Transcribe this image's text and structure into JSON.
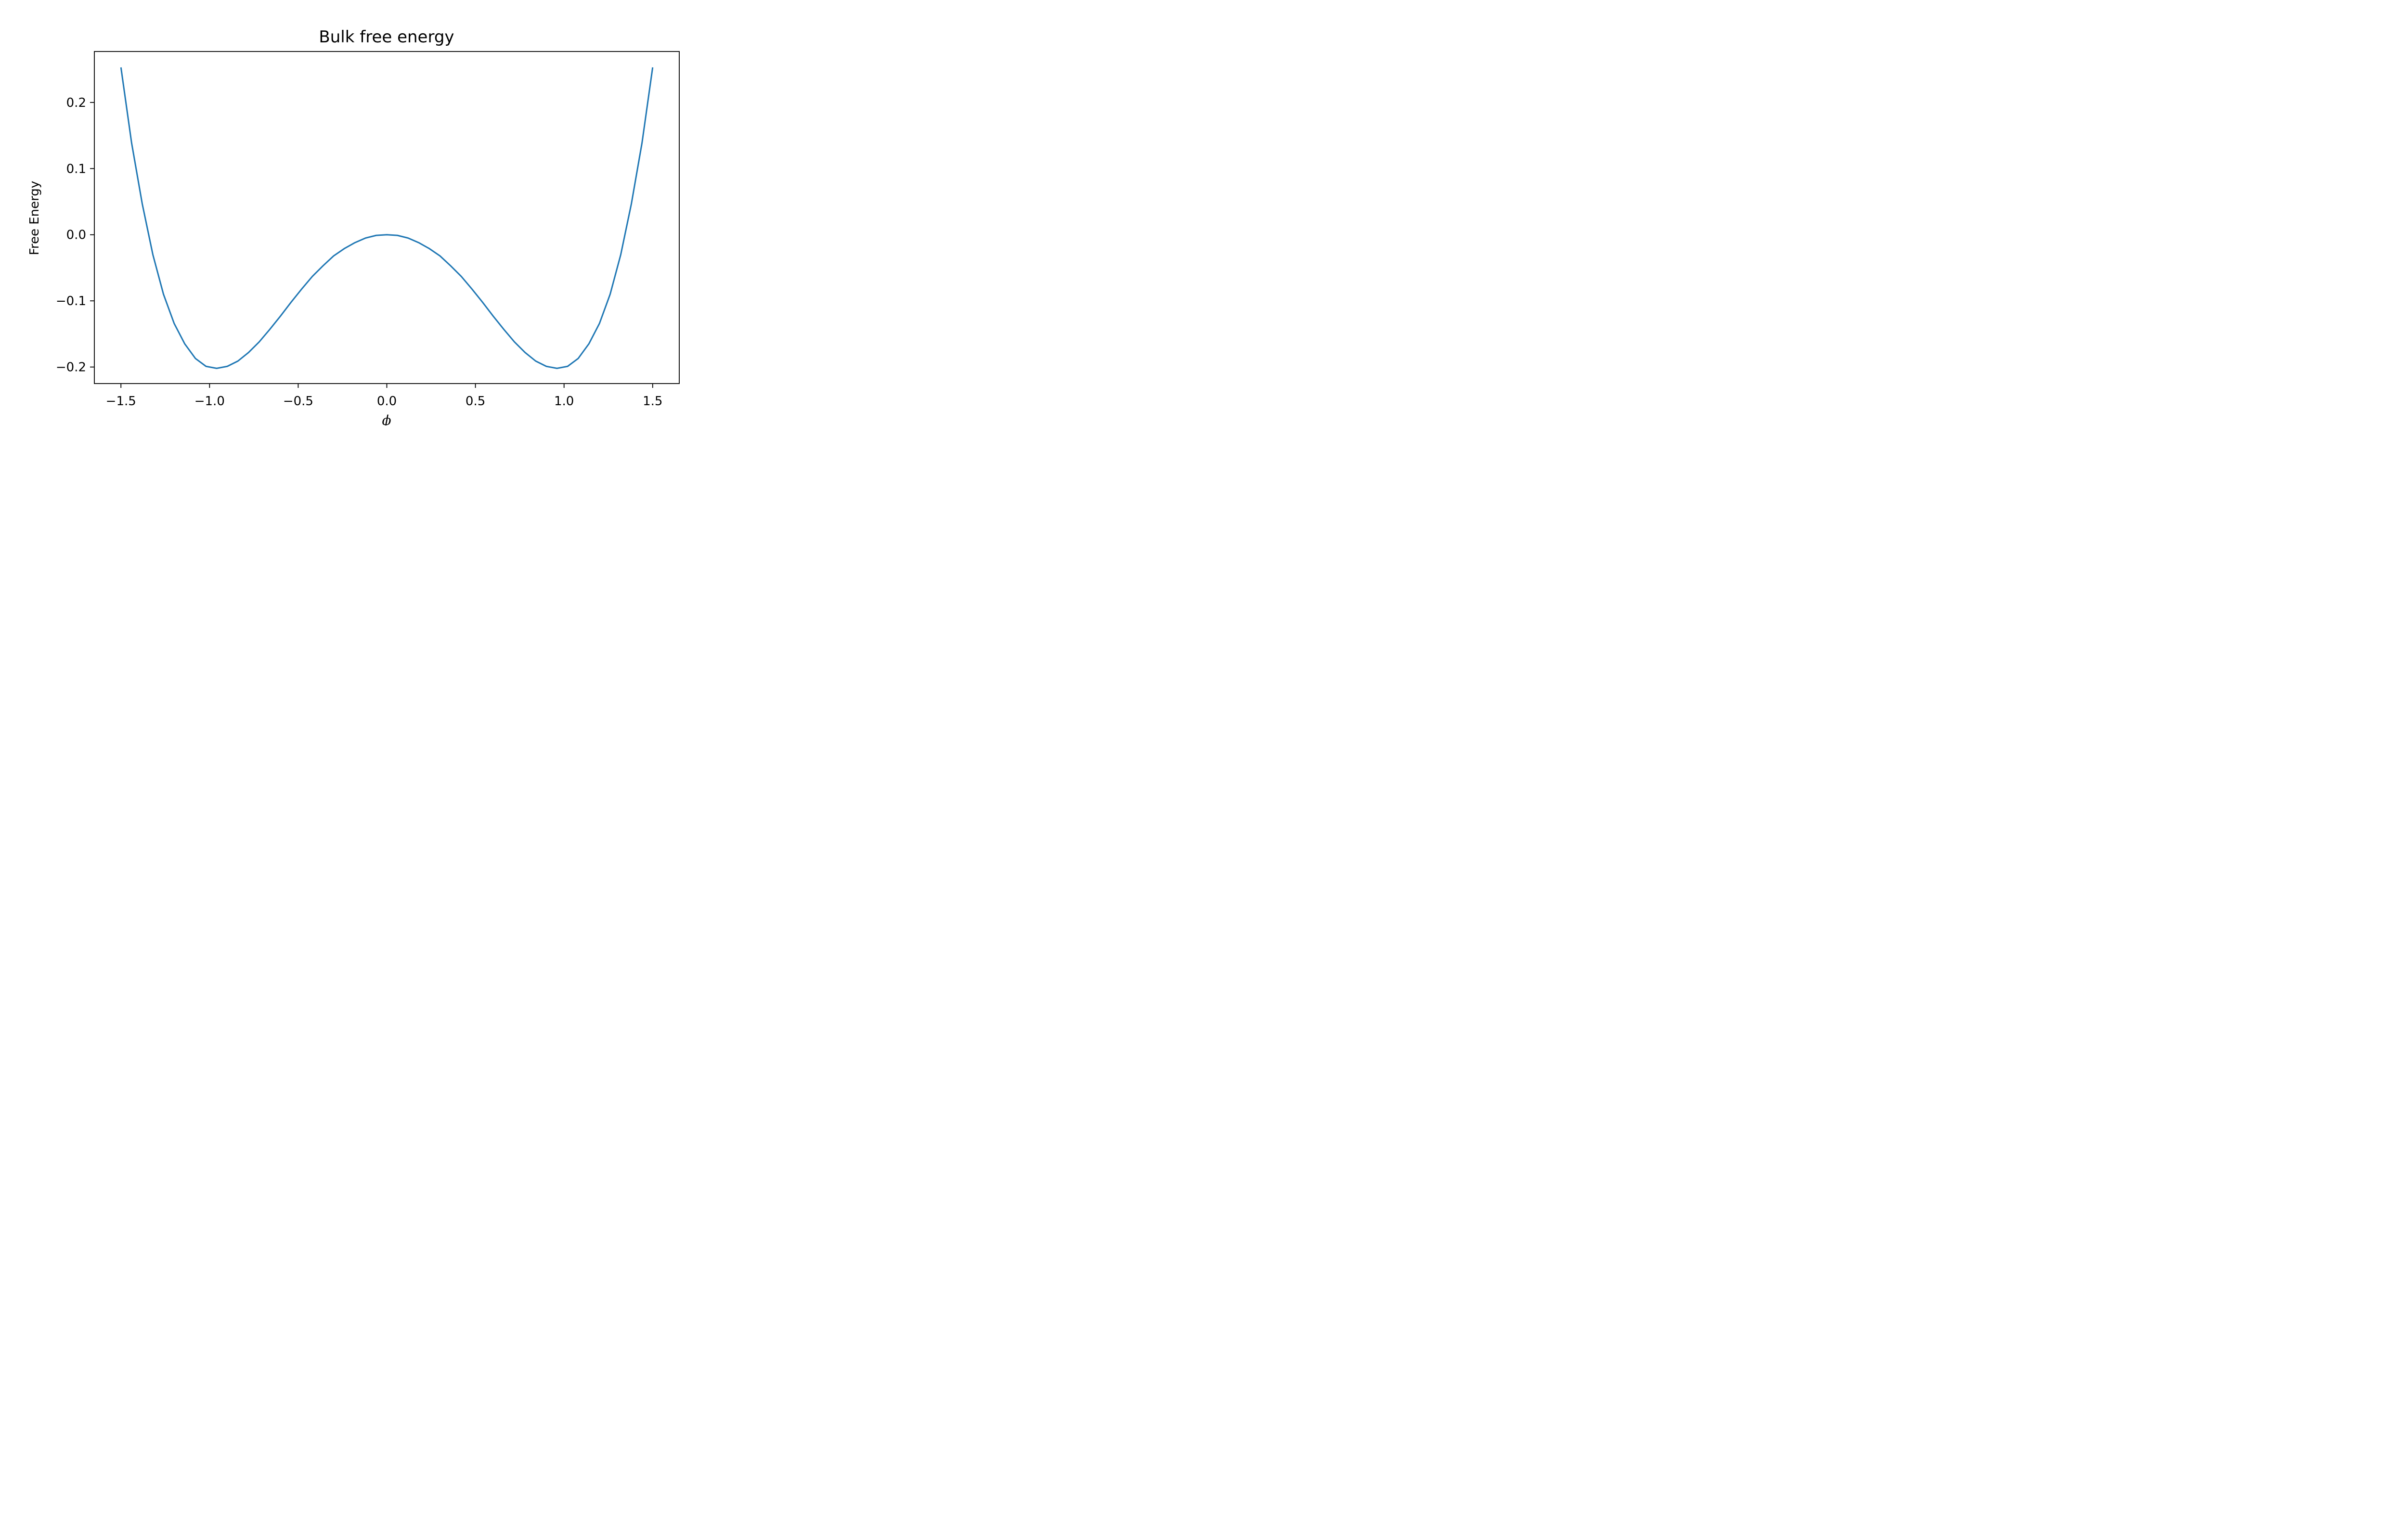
{
  "chart_data": {
    "type": "line",
    "title": "Bulk free energy",
    "xlabel": "ϕ",
    "ylabel": "Free Energy",
    "xlim": [
      -1.65,
      1.65
    ],
    "ylim": [
      -0.225,
      0.277
    ],
    "grid": false,
    "line_color": "#1f77b4",
    "xticks": [
      -1.5,
      -1.0,
      -0.5,
      0.0,
      0.5,
      1.0,
      1.5
    ],
    "xtick_labels": [
      "−1.5",
      "−1.0",
      "−0.5",
      "0.0",
      "0.5",
      "1.0",
      "1.5"
    ],
    "yticks": [
      -0.2,
      -0.1,
      0.0,
      0.1,
      0.2
    ],
    "ytick_labels": [
      "−0.2",
      "−0.1",
      "0.0",
      "0.1",
      "0.2"
    ],
    "series": [
      {
        "x": [
          -1.5,
          -1.44,
          -1.38,
          -1.32,
          -1.26,
          -1.2,
          -1.14,
          -1.08,
          -1.02,
          -0.96,
          -0.9,
          -0.84,
          -0.78,
          -0.72,
          -0.66,
          -0.6,
          -0.54,
          -0.48,
          -0.42,
          -0.36,
          -0.3,
          -0.24,
          -0.18,
          -0.12,
          -0.06,
          0.0,
          0.06,
          0.12,
          0.18,
          0.24,
          0.3,
          0.36,
          0.42,
          0.48,
          0.54,
          0.6,
          0.66,
          0.72,
          0.78,
          0.84,
          0.9,
          0.96,
          1.02,
          1.08,
          1.14,
          1.2,
          1.26,
          1.32,
          1.38,
          1.44,
          1.5
        ],
        "y": [
          0.253,
          0.139,
          0.047,
          -0.03,
          -0.09,
          -0.134,
          -0.165,
          -0.187,
          -0.199,
          -0.202,
          -0.199,
          -0.191,
          -0.178,
          -0.162,
          -0.143,
          -0.123,
          -0.102,
          -0.082,
          -0.063,
          -0.047,
          -0.032,
          -0.021,
          -0.012,
          -0.005,
          -0.001,
          0.0,
          -0.001,
          -0.005,
          -0.012,
          -0.021,
          -0.032,
          -0.047,
          -0.063,
          -0.082,
          -0.102,
          -0.123,
          -0.143,
          -0.162,
          -0.178,
          -0.191,
          -0.199,
          -0.202,
          -0.199,
          -0.187,
          -0.165,
          -0.134,
          -0.09,
          -0.03,
          0.047,
          0.139,
          0.253
        ]
      }
    ]
  }
}
